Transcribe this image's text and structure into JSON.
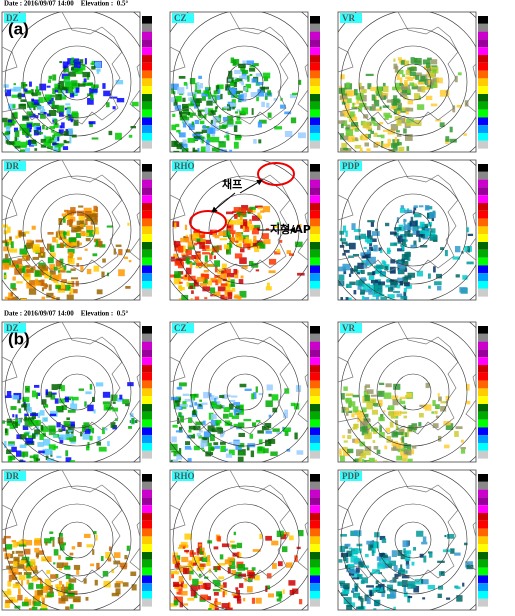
{
  "sections": [
    {
      "header": "Date : 2016/09/07 14:00    Elevation :  0.5°",
      "label": "(a)",
      "panels": [
        "DZ",
        "CZ",
        "VR",
        "DR",
        "RHO",
        "PDP"
      ]
    },
    {
      "header": "Date : 2016/09/07 14:00    Elevation :  0.5°",
      "label": "(b)",
      "panels": [
        "DZ",
        "CZ",
        "VR",
        "DR",
        "RHO",
        "PDP"
      ]
    }
  ],
  "annotations": [
    "채프",
    "지형/AP"
  ]
}
